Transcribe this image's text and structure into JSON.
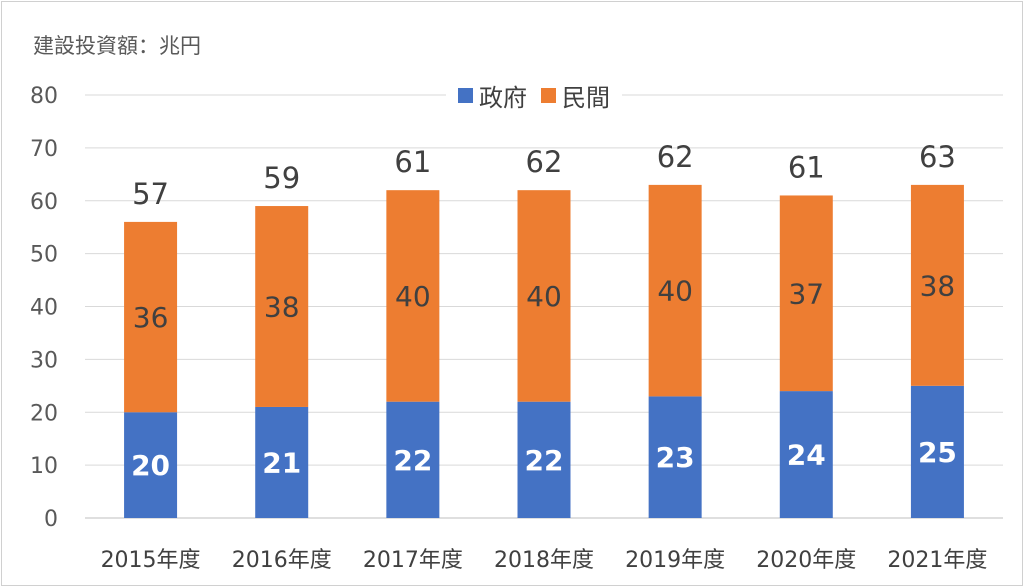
{
  "chart_data": {
    "type": "bar",
    "stacked": true,
    "unit_label": "建設投資額：兆円",
    "categories": [
      "2015年度",
      "2016年度",
      "2017年度",
      "2018年度",
      "2019年度",
      "2020年度",
      "2021年度"
    ],
    "series": [
      {
        "name": "政府",
        "color": "#4472C4",
        "values": [
          20,
          21,
          22,
          22,
          23,
          24,
          25
        ]
      },
      {
        "name": "民間",
        "color": "#ED7D31",
        "values": [
          36,
          38,
          40,
          40,
          40,
          37,
          38
        ]
      }
    ],
    "totals": [
      57,
      59,
      61,
      62,
      62,
      61,
      63
    ],
    "ylim": [
      0,
      80
    ],
    "yticks": [
      0,
      10,
      20,
      30,
      40,
      50,
      60,
      70,
      80
    ],
    "grid": true,
    "legend_position": "top"
  }
}
